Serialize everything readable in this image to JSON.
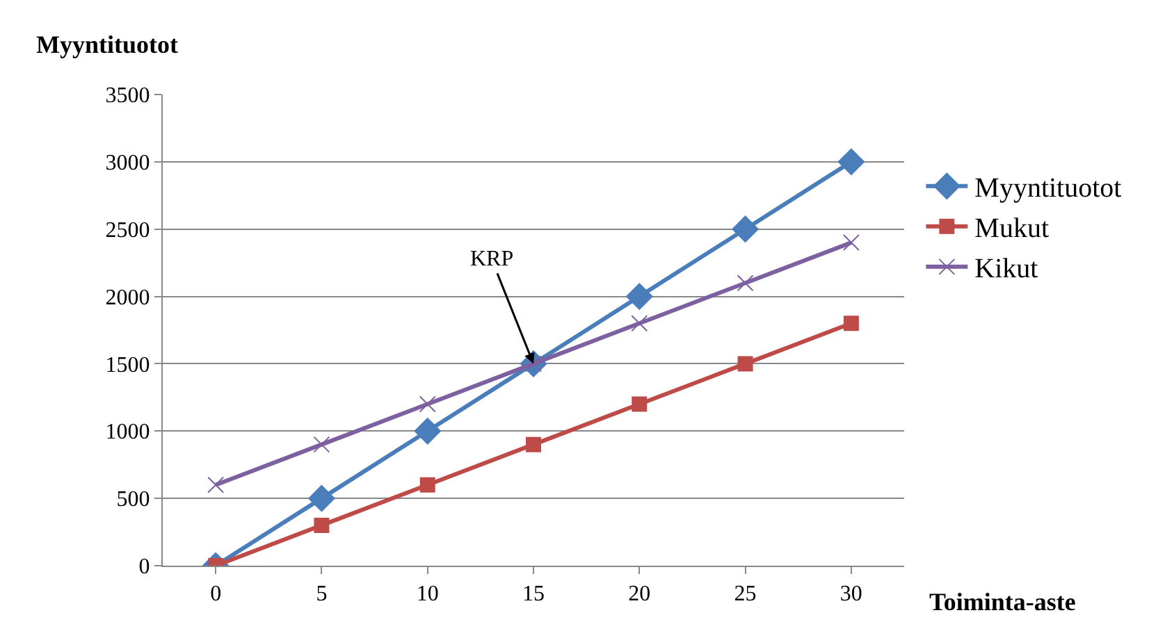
{
  "chart_data": {
    "type": "line",
    "xlabel": "Toiminta-aste",
    "ylabel": "Myyntituotot",
    "categories": [
      "0",
      "5",
      "10",
      "15",
      "20",
      "25",
      "30"
    ],
    "series": [
      {
        "name": "Myyntituotot",
        "color": "#4a7ebb",
        "marker": "diamond",
        "values": [
          0,
          500,
          1000,
          1500,
          2000,
          2500,
          3000
        ]
      },
      {
        "name": "Mukut",
        "color": "#be4b48",
        "marker": "square",
        "values": [
          0,
          300,
          600,
          900,
          1200,
          1500,
          1800
        ]
      },
      {
        "name": "Kikut",
        "color": "#7d60a0",
        "marker": "cross",
        "values": [
          600,
          900,
          1200,
          1500,
          1800,
          2100,
          2400
        ]
      }
    ],
    "ylim": [
      0,
      3500
    ],
    "yticks": [
      0,
      500,
      1000,
      1500,
      2000,
      2500,
      3000,
      3500
    ],
    "grid": "y",
    "legend": "right",
    "annotations": [
      {
        "text": "KRP",
        "x": "15",
        "y": 1500
      }
    ]
  }
}
